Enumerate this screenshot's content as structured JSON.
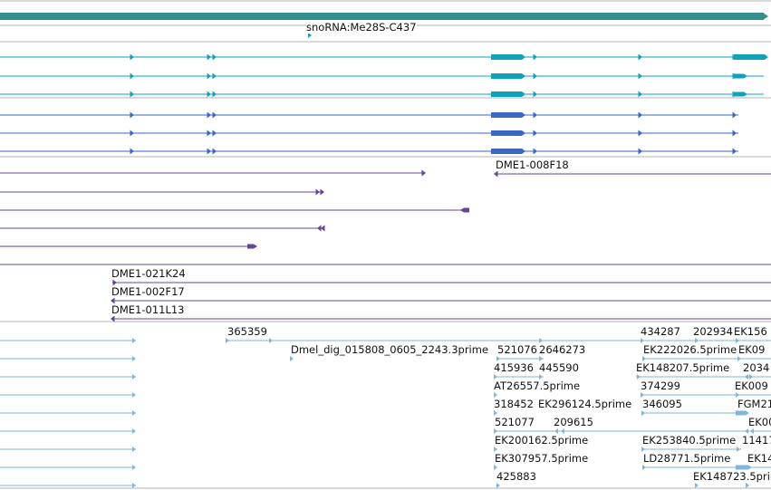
{
  "colors": {
    "contig_bar": "#33908e",
    "gene_teal": "#0fa3ba",
    "gene_blue": "#3a66c4",
    "clone_purple": "#66449e",
    "est_light": "#7fb6dd",
    "separator": "#b4b4b4"
  },
  "snorna": {
    "label": "snoRNA:Me28S-C437"
  },
  "clones": {
    "label_1": "DME1-008F18",
    "label_2": "DME1-021K24",
    "label_3": "DME1-002F17",
    "label_4": "DME1-011L13"
  },
  "ests": {
    "labels": [
      "365359",
      "434287",
      "202934",
      "EK156",
      "Dmel_dig_015808_0605_2243.3prime",
      "521076",
      "2646273",
      "EK222026.5prime",
      "EK09",
      "415936",
      "445590",
      "EK148207.5prime",
      "2034",
      "AT26557.5prime",
      "374299",
      "EK009",
      "318452",
      "EK296124.5prime",
      "346095",
      "FGM21",
      "521077",
      "209615",
      "EK00",
      "EK200162.5prime",
      "EK253840.5prime",
      "11417",
      "EK307957.5prime",
      "LD28771.5prime",
      "EK14",
      "425883",
      "EK148723.5prime"
    ]
  }
}
